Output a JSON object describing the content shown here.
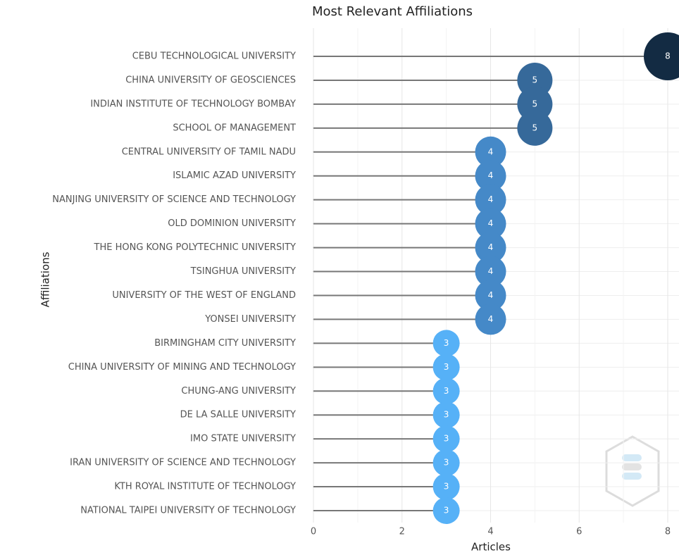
{
  "chart_data": {
    "type": "lollipop",
    "title": "Most Relevant Affiliations",
    "x_label": "Articles",
    "y_label": "Affiliations",
    "categories": [
      "CEBU TECHNOLOGICAL UNIVERSITY",
      "CHINA UNIVERSITY OF GEOSCIENCES",
      "INDIAN INSTITUTE OF TECHNOLOGY BOMBAY",
      "SCHOOL OF MANAGEMENT",
      "CENTRAL UNIVERSITY OF TAMIL NADU",
      "ISLAMIC AZAD UNIVERSITY",
      "NANJING UNIVERSITY OF SCIENCE AND TECHNOLOGY",
      "OLD DOMINION UNIVERSITY",
      "THE HONG KONG POLYTECHNIC UNIVERSITY",
      "TSINGHUA UNIVERSITY",
      "UNIVERSITY OF THE WEST OF ENGLAND",
      "YONSEI UNIVERSITY",
      "BIRMINGHAM CITY UNIVERSITY",
      "CHINA UNIVERSITY OF MINING AND TECHNOLOGY",
      "CHUNG-ANG UNIVERSITY",
      "DE LA SALLE UNIVERSITY",
      "IMO STATE UNIVERSITY",
      "IRAN UNIVERSITY OF SCIENCE AND TECHNOLOGY",
      "KTH ROYAL INSTITUTE OF TECHNOLOGY",
      "NATIONAL TAIPEI UNIVERSITY OF TECHNOLOGY"
    ],
    "values": [
      8,
      5,
      5,
      5,
      4,
      4,
      4,
      4,
      4,
      4,
      4,
      4,
      3,
      3,
      3,
      3,
      3,
      3,
      3,
      3
    ],
    "colors": [
      "#132b43",
      "#36699a",
      "#36699a",
      "#36699a",
      "#4589c8",
      "#4589c8",
      "#4589c8",
      "#4589c8",
      "#4589c8",
      "#4589c8",
      "#4589c8",
      "#4589c8",
      "#56b1f7",
      "#56b1f7",
      "#56b1f7",
      "#56b1f7",
      "#56b1f7",
      "#56b1f7",
      "#56b1f7",
      "#56b1f7"
    ],
    "xlim": [
      0,
      8
    ],
    "xticks": [
      0,
      2,
      4,
      6,
      8
    ],
    "grid": true
  }
}
